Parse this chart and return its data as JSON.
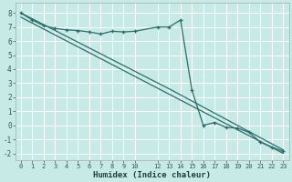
{
  "xlabel": "Humidex (Indice chaleur)",
  "bg_color": "#c8eae6",
  "grid_color": "#ffffff",
  "line_color": "#2d6b6b",
  "xlim": [
    -0.5,
    23.5
  ],
  "ylim": [
    -2.5,
    8.7
  ],
  "xticks": [
    0,
    1,
    2,
    3,
    4,
    5,
    6,
    7,
    8,
    9,
    10,
    12,
    13,
    14,
    15,
    16,
    17,
    18,
    19,
    20,
    21,
    22,
    23
  ],
  "yticks": [
    -2,
    -1,
    0,
    1,
    2,
    3,
    4,
    5,
    6,
    7,
    8
  ],
  "line1_x": [
    0,
    1,
    2,
    3,
    4,
    5,
    6,
    7,
    8,
    9,
    10,
    12,
    13,
    14,
    15,
    16,
    17,
    18,
    19,
    20,
    21,
    22,
    23
  ],
  "line1_y": [
    8.0,
    7.5,
    7.1,
    6.9,
    6.8,
    6.75,
    6.65,
    6.5,
    6.7,
    6.65,
    6.7,
    7.0,
    7.0,
    7.5,
    2.5,
    0.0,
    0.2,
    -0.15,
    -0.2,
    -0.5,
    -1.2,
    -1.55,
    -1.85
  ],
  "line2_x": [
    0,
    13,
    23
  ],
  "line2_y": [
    8.0,
    2.6,
    -1.75
  ],
  "line3_x": [
    0,
    23
  ],
  "line3_y": [
    7.7,
    -2.0
  ]
}
